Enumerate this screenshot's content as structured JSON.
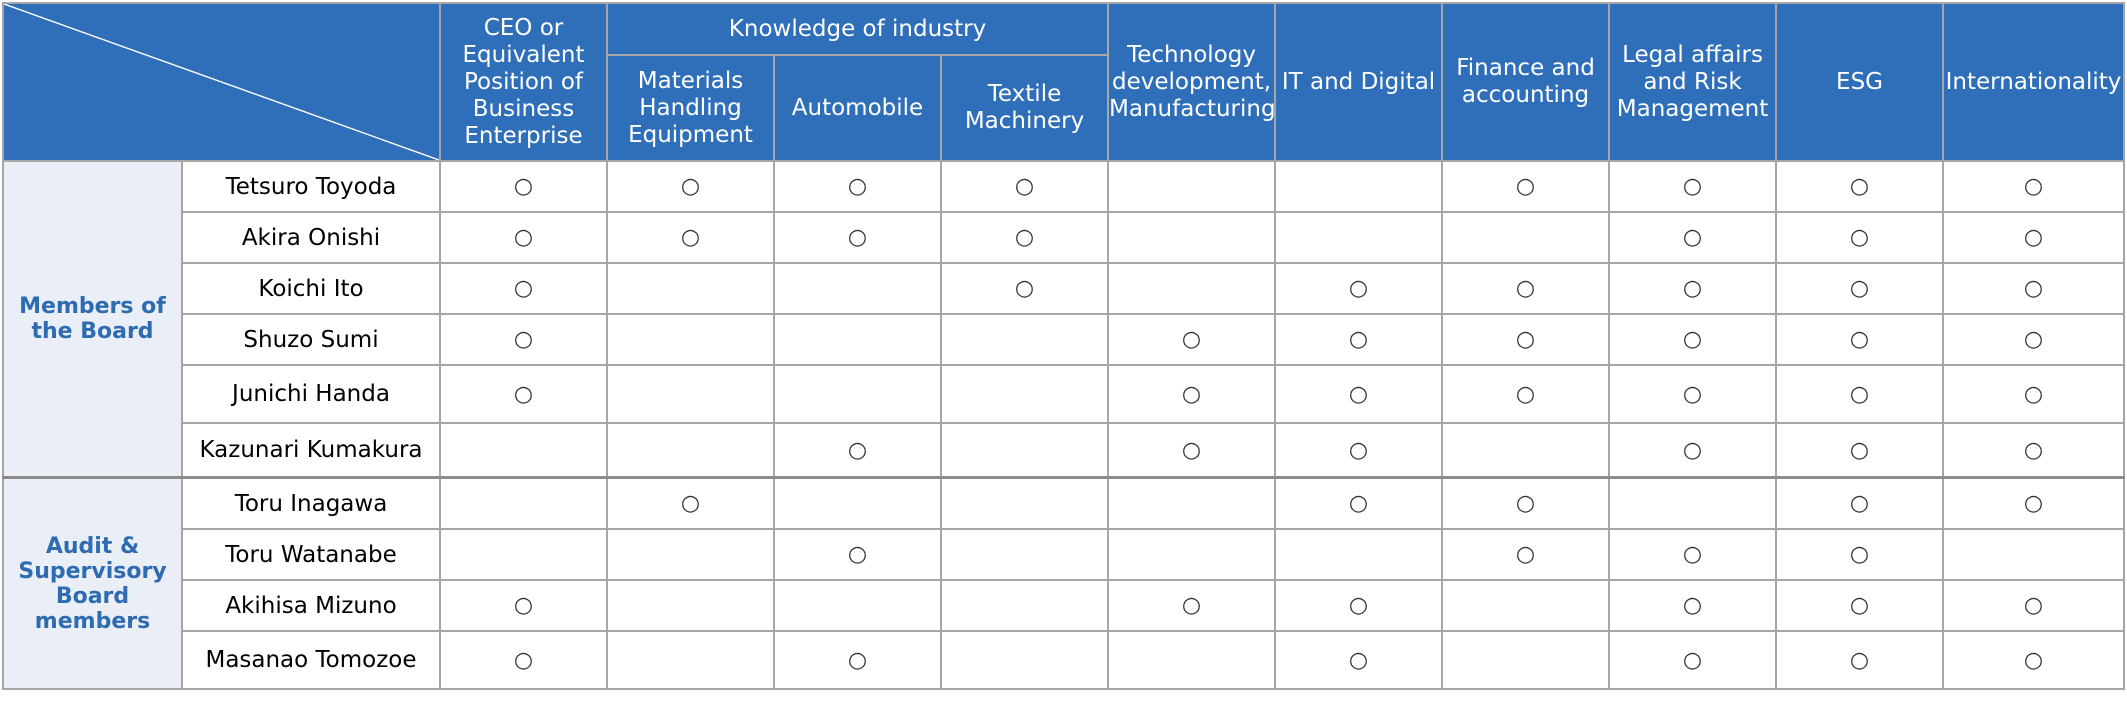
{
  "headers": {
    "ceo": "CEO or Equivalent Position of Business Enterprise",
    "industry_group": "Knowledge of industry",
    "materials": "Materials Handling Equipment",
    "automobile": "Automobile",
    "textile": "Textile Machinery",
    "technology": "Technology development, Manufacturing",
    "it": "IT and Digital",
    "finance": "Finance and accounting",
    "legal": "Legal affairs and Risk Management",
    "esg": "ESG",
    "international": "Internationality"
  },
  "mark_symbol": "○",
  "groups": [
    {
      "label": "Members of the Board",
      "members": [
        {
          "name": "Tetsuro Toyoda",
          "marks": [
            "○",
            "○",
            "○",
            "○",
            "",
            "",
            "○",
            "○",
            "○",
            "○"
          ]
        },
        {
          "name": "Akira Onishi",
          "marks": [
            "○",
            "○",
            "○",
            "○",
            "",
            "",
            "",
            "○",
            "○",
            "○"
          ]
        },
        {
          "name": "Koichi Ito",
          "marks": [
            "○",
            "",
            "",
            "○",
            "",
            "○",
            "○",
            "○",
            "○",
            "○"
          ]
        },
        {
          "name": "Shuzo Sumi",
          "marks": [
            "○",
            "",
            "",
            "",
            "○",
            "○",
            "○",
            "○",
            "○",
            "○"
          ]
        },
        {
          "name": "Junichi Handa",
          "marks": [
            "○",
            "",
            "",
            "",
            "○",
            "○",
            "○",
            "○",
            "○",
            "○"
          ]
        },
        {
          "name": "Kazunari Kumakura",
          "marks": [
            "",
            "",
            "○",
            "",
            "○",
            "○",
            "",
            "○",
            "○",
            "○"
          ]
        }
      ]
    },
    {
      "label": "Audit & Supervisory Board members",
      "members": [
        {
          "name": "Toru Inagawa",
          "marks": [
            "",
            "○",
            "",
            "",
            "",
            "○",
            "○",
            "",
            "○",
            "○"
          ]
        },
        {
          "name": "Toru Watanabe",
          "marks": [
            "",
            "",
            "○",
            "",
            "",
            "",
            "○",
            "○",
            "○",
            ""
          ]
        },
        {
          "name": "Akihisa Mizuno",
          "marks": [
            "○",
            "",
            "",
            "",
            "○",
            "○",
            "",
            "○",
            "○",
            "○"
          ]
        },
        {
          "name": "Masanao Tomozoe",
          "marks": [
            "○",
            "",
            "○",
            "",
            "",
            "○",
            "",
            "○",
            "○",
            "○"
          ]
        }
      ]
    }
  ]
}
